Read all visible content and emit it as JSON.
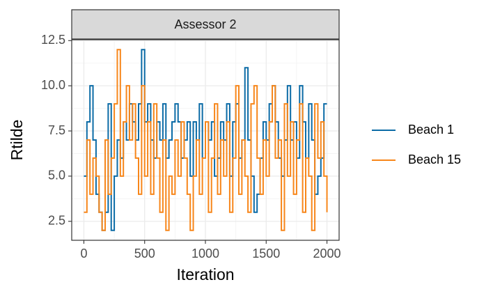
{
  "chart_data": {
    "type": "line",
    "panel_title": "Assessor 2",
    "xlabel": "Iteration",
    "ylabel": "Rtilde",
    "drawstyle": "steps-post",
    "grid": true,
    "legend": "right",
    "x": [
      0,
      25,
      50,
      75,
      100,
      125,
      150,
      175,
      200,
      225,
      250,
      275,
      300,
      325,
      350,
      375,
      400,
      425,
      450,
      475,
      500,
      525,
      550,
      575,
      600,
      625,
      650,
      675,
      700,
      725,
      750,
      775,
      800,
      825,
      850,
      875,
      900,
      925,
      950,
      975,
      1000,
      1025,
      1050,
      1075,
      1100,
      1125,
      1150,
      1175,
      1200,
      1225,
      1250,
      1275,
      1300,
      1325,
      1350,
      1375,
      1400,
      1425,
      1450,
      1475,
      1500,
      1525,
      1550,
      1575,
      1600,
      1625,
      1650,
      1675,
      1700,
      1725,
      1750,
      1775,
      1800,
      1825,
      1850,
      1875,
      1900,
      1925,
      1950,
      1975,
      2000
    ],
    "series": [
      {
        "name": "Beach 1",
        "color": "#0b6ba6",
        "values": [
          5,
          8,
          10,
          7,
          4,
          3,
          2,
          3,
          9,
          2,
          5,
          7,
          6,
          8,
          7,
          9,
          8,
          7,
          9,
          12,
          8,
          9,
          7,
          6,
          8,
          7,
          9,
          6,
          7,
          8,
          9,
          8,
          6,
          7,
          8,
          5,
          8,
          7,
          9,
          6,
          8,
          7,
          8,
          5,
          6,
          8,
          7,
          9,
          5,
          8,
          9,
          6,
          7,
          11,
          7,
          5,
          3,
          4,
          6,
          8,
          7,
          9,
          10,
          8,
          6,
          5,
          7,
          10,
          7,
          8,
          6,
          10,
          8,
          6,
          9,
          7,
          4,
          5,
          6,
          9,
          9
        ]
      },
      {
        "name": "Beach 15",
        "color": "#f7861a",
        "values": [
          3,
          7,
          4,
          6,
          5,
          3,
          2,
          7,
          4,
          6,
          9,
          12,
          5,
          8,
          10,
          7,
          9,
          6,
          4,
          10,
          5,
          8,
          4,
          9,
          6,
          3,
          7,
          2,
          5,
          4,
          7,
          5,
          8,
          6,
          4,
          2,
          5,
          7,
          4,
          6,
          8,
          3,
          6,
          9,
          4,
          7,
          5,
          8,
          3,
          6,
          10,
          4,
          7,
          5,
          3,
          9,
          10,
          6,
          4,
          7,
          5,
          8,
          10,
          6,
          7,
          2,
          9,
          5,
          8,
          4,
          7,
          9,
          3,
          6,
          5,
          2,
          9,
          6,
          8,
          5,
          3
        ]
      }
    ],
    "xlim": [
      -100,
      2100
    ],
    "xticks": [
      0,
      500,
      1000,
      1500,
      2000
    ],
    "x_minor_ticks": [
      250,
      750,
      1250,
      1750
    ],
    "ylim": [
      1.45,
      12.55
    ],
    "yticks": [
      12.5,
      {
        "value": 10,
        "label": "10.0"
      },
      7.5,
      {
        "value": 5,
        "label": "5.0"
      },
      2.5
    ],
    "y_minor_ticks": [
      3.75,
      6.25,
      8.75,
      11.25
    ]
  }
}
